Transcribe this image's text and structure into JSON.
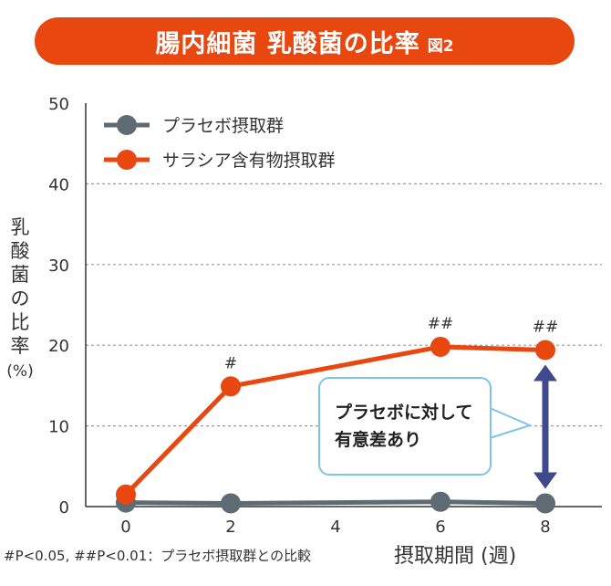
{
  "header": {
    "title": "腸内細菌 乳酸菌の比率",
    "figure_label": "図2"
  },
  "axis": {
    "ylabel": "乳酸菌の比率",
    "yunit": "(%)",
    "xlabel": "摂取期間 (週)"
  },
  "footnote": "#P<0.05, ##P<0.01：プラセボ摂取群との比較",
  "callout": {
    "text": "プラセボに対して\n有意差あり"
  },
  "colors": {
    "banner": "#e8470f",
    "placebo": "#5f6b73",
    "salacia": "#e8470f",
    "arrow": "#3f4a8c",
    "callout_border": "#7dc5e8"
  },
  "chart_data": {
    "type": "line",
    "x": [
      0,
      2,
      6,
      8
    ],
    "xticks": [
      0,
      2,
      4,
      6,
      8
    ],
    "xlim": [
      0,
      8
    ],
    "ylim": [
      0,
      50
    ],
    "yticks": [
      0,
      10,
      20,
      30,
      40,
      50
    ],
    "grid": "horizontal-dashed",
    "legend": "top-left",
    "series": [
      {
        "name": "プラセボ摂取群",
        "values": [
          0.5,
          0.4,
          0.6,
          0.4
        ],
        "color": "#5f6b73"
      },
      {
        "name": "サラシア含有物摂取群",
        "values": [
          1.5,
          14.9,
          19.8,
          19.4
        ],
        "color": "#e8470f",
        "annotations": [
          "",
          "#",
          "##",
          "##"
        ]
      }
    ]
  }
}
